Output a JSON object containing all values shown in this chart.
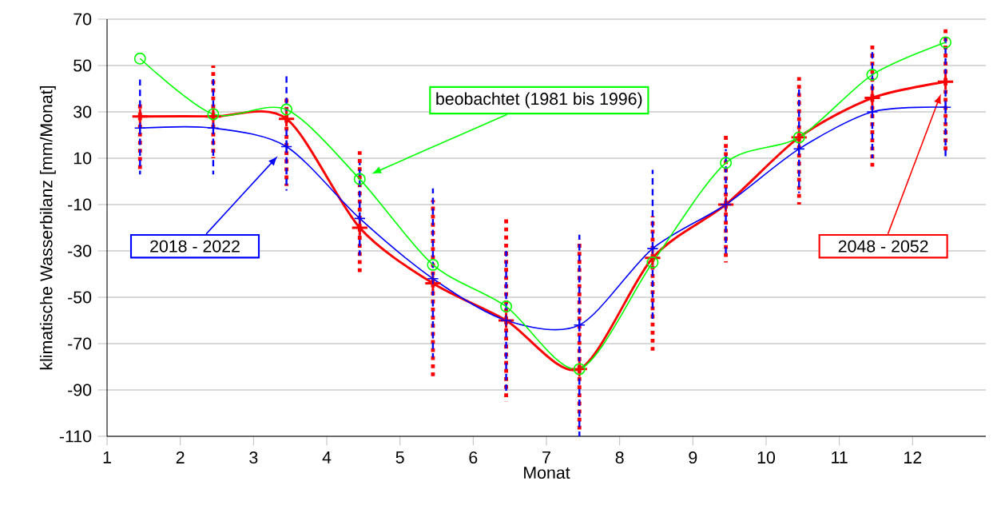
{
  "chart_data": {
    "type": "line",
    "xlabel": "Monat",
    "ylabel": "klimatische Wasserbilanz [mm/Monat]",
    "x": [
      1.45,
      2.45,
      3.45,
      4.45,
      5.45,
      6.45,
      7.45,
      8.45,
      9.45,
      10.45,
      11.45,
      12.45
    ],
    "xlim": [
      1,
      13
    ],
    "xticks": [
      1,
      2,
      3,
      4,
      5,
      6,
      7,
      8,
      9,
      10,
      11,
      12
    ],
    "ylim": [
      -110,
      70
    ],
    "yticks": [
      -110,
      -90,
      -70,
      -50,
      -30,
      -10,
      10,
      30,
      50,
      70
    ],
    "grid": "y",
    "legend": false,
    "series": [
      {
        "name": "2048 - 2052",
        "color": "#ff0000",
        "marker": "cross",
        "values": [
          28,
          28,
          27,
          -20,
          -44,
          -60,
          -81,
          -33,
          -10,
          19,
          36,
          43
        ],
        "errors": [
          [
            5,
            35
          ],
          [
            10,
            50
          ],
          [
            -2,
            36
          ],
          [
            -40,
            13
          ],
          [
            -85,
            -8
          ],
          [
            -95,
            -15
          ],
          [
            -108,
            -25
          ],
          [
            -73,
            -15
          ],
          [
            -35,
            20
          ],
          [
            -10,
            45
          ],
          [
            5,
            60
          ],
          [
            13,
            67
          ]
        ]
      },
      {
        "name": "2018 - 2022",
        "color": "#0000ff",
        "marker": "cross",
        "values": [
          23,
          23,
          15,
          -16,
          -42,
          -60,
          -62,
          -29,
          -10,
          14,
          30,
          32
        ],
        "errors": [
          [
            3,
            44
          ],
          [
            3,
            45
          ],
          [
            -4,
            46
          ],
          [
            -32,
            8
          ],
          [
            -76,
            -3
          ],
          [
            -92,
            -30
          ],
          [
            -110,
            -23
          ],
          [
            -60,
            5
          ],
          [
            -32,
            14
          ],
          [
            -5,
            40
          ],
          [
            10,
            57
          ],
          [
            10,
            62
          ]
        ]
      },
      {
        "name": "beobachtet (1981 bis 1996)",
        "color": "#00ff00",
        "marker": "circle",
        "values": [
          53,
          29,
          31,
          1,
          -36,
          -54,
          -81,
          -35,
          8,
          19,
          46,
          60
        ]
      }
    ]
  }
}
